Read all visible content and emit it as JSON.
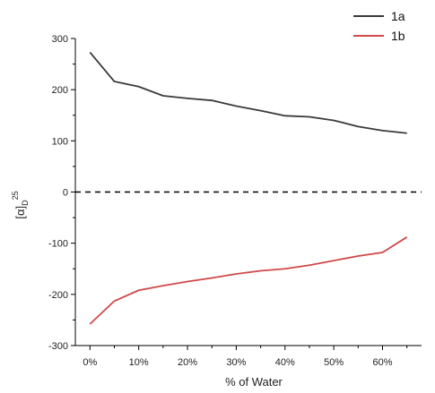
{
  "chart_data": {
    "type": "line",
    "xlabel": "% of Water",
    "ylabel": "[α]D25",
    "ylabel_parts": {
      "main": "[α]",
      "sub": "D",
      "sup": "25"
    },
    "x": [
      0,
      5,
      10,
      15,
      20,
      25,
      30,
      35,
      40,
      45,
      50,
      55,
      60,
      65
    ],
    "xlim": [
      -3,
      68
    ],
    "ylim": [
      -300,
      300
    ],
    "xticks": [
      0,
      10,
      20,
      30,
      40,
      50,
      60
    ],
    "xtick_labels": [
      "0%",
      "10%",
      "20%",
      "30%",
      "40%",
      "50%",
      "60%"
    ],
    "yticks": [
      -300,
      -200,
      -100,
      0,
      100,
      200,
      300
    ],
    "ytick_labels": [
      "-300",
      "-200",
      "-100",
      "0",
      "100",
      "200",
      "300"
    ],
    "grid": false,
    "legend_position": "top-right",
    "zero_line": {
      "y": 0,
      "style": "dashed",
      "color": "#000000"
    },
    "series": [
      {
        "name": "1a",
        "color": "#3a3a3a",
        "values": [
          273,
          216,
          206,
          188,
          183,
          179,
          168,
          159,
          149,
          147,
          140,
          128,
          120,
          115
        ]
      },
      {
        "name": "1b",
        "color": "#d04848",
        "values": [
          -258,
          -213,
          -192,
          -183,
          -175,
          -168,
          -160,
          -154,
          -150,
          -143,
          -134,
          -125,
          -118,
          -88
        ]
      }
    ]
  }
}
